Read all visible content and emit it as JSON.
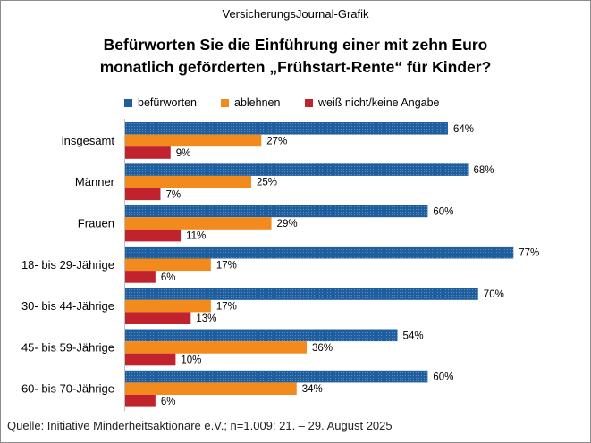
{
  "header": {
    "source_label": "VersicherungsJournal-Grafik"
  },
  "footer": {
    "text": "Quelle: Initiative Minderheitsaktionäre e.V.; n=1.009; 21. – 29. August 2025"
  },
  "chart_data": {
    "type": "bar",
    "orientation": "horizontal",
    "title_lines": [
      "Befürworten Sie die Einführung einer mit zehn Euro",
      "monatlich geförderten „Frühstart-Rente“ für Kinder?"
    ],
    "categories": [
      "insgesamt",
      "Männer",
      "Frauen",
      "18- bis 29-Jährige",
      "30- bis 44-Jährige",
      "45- bis 59-Jährige",
      "60- bis 70-Jährige"
    ],
    "series": [
      {
        "name": "befürworten",
        "color": "#1f5fa0",
        "values": [
          64,
          68,
          60,
          77,
          70,
          54,
          60
        ]
      },
      {
        "name": "ablehnen",
        "color": "#f28a1e",
        "values": [
          27,
          25,
          29,
          17,
          17,
          36,
          34
        ]
      },
      {
        "name": "weiß nicht/keine Angabe",
        "color": "#c0232e",
        "values": [
          9,
          7,
          11,
          6,
          13,
          10,
          6
        ]
      }
    ],
    "value_suffix": "%",
    "xlim": [
      0,
      100
    ],
    "legend_position": "top"
  }
}
